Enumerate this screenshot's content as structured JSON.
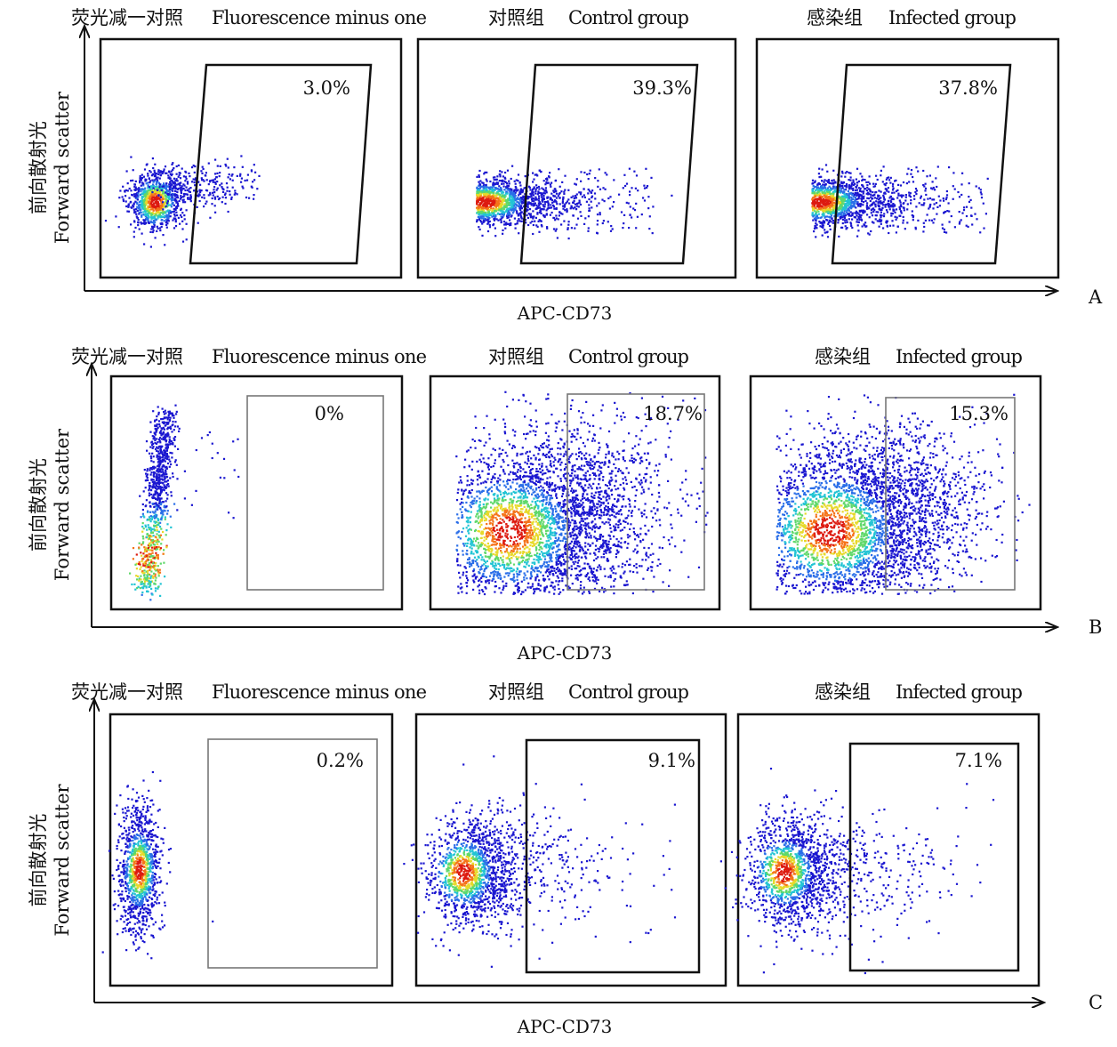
{
  "chart_data": [
    {
      "type": "scatter",
      "row_label": "A",
      "xlabel": "APC-CD73",
      "ylabel_cn": "前向散射光",
      "ylabel_en": "Forward  scatter",
      "panels": [
        {
          "title_cn": "荧光减一对照",
          "title_en": "Fluorescence  minus  one",
          "gate_label": "3.0%",
          "gated_percent": 3.0
        },
        {
          "title_cn": "对照组",
          "title_en": "Control  group",
          "gate_label": "39.3%",
          "gated_percent": 39.3
        },
        {
          "title_cn": "感染组",
          "title_en": "Infected  group",
          "gate_label": "37.8%",
          "gated_percent": 37.8
        }
      ]
    },
    {
      "type": "scatter",
      "row_label": "B",
      "xlabel": "APC-CD73",
      "ylabel_cn": "前向散射光",
      "ylabel_en": "Forward  scatter",
      "panels": [
        {
          "title_cn": "荧光减一对照",
          "title_en": "Fluorescence  minus  one",
          "gate_label": "0%",
          "gated_percent": 0
        },
        {
          "title_cn": "对照组",
          "title_en": "Control  group",
          "gate_label": "18.7%",
          "gated_percent": 18.7
        },
        {
          "title_cn": "感染组",
          "title_en": "Infected  group",
          "gate_label": "15.3%",
          "gated_percent": 15.3
        }
      ]
    },
    {
      "type": "scatter",
      "row_label": "C",
      "xlabel": "APC-CD73",
      "ylabel_cn": "前向散射光",
      "ylabel_en": "Forward  scatter",
      "panels": [
        {
          "title_cn": "荧光减一对照",
          "title_en": "Fluorescence  minus  one",
          "gate_label": "0.2%",
          "gated_percent": 0.2
        },
        {
          "title_cn": "对照组",
          "title_en": "Control  group",
          "gate_label": "9.1%",
          "gated_percent": 9.1
        },
        {
          "title_cn": "感染组",
          "title_en": "Infected  group",
          "gate_label": "7.1%",
          "gated_percent": 7.1
        }
      ]
    }
  ]
}
